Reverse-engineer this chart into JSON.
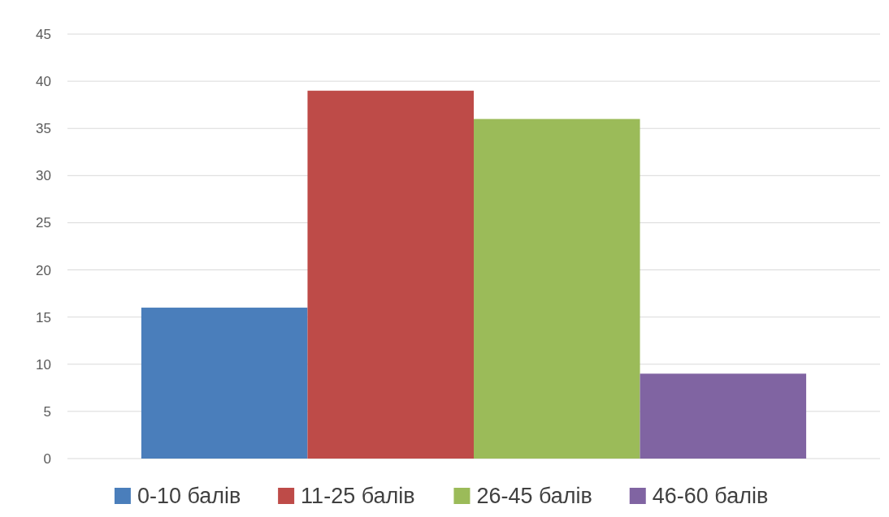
{
  "chart_data": {
    "type": "bar",
    "categories": [
      null
    ],
    "series": [
      {
        "name": "0-10 балів",
        "color": "#4a7ebb",
        "values": [
          16
        ]
      },
      {
        "name": "11-25 балів",
        "color": "#be4b48",
        "values": [
          39
        ]
      },
      {
        "name": "26-45 балів",
        "color": "#9bbb59",
        "values": [
          36
        ]
      },
      {
        "name": "46-60 балів",
        "color": "#8064a2",
        "values": [
          9
        ]
      }
    ],
    "ylim": [
      0,
      45
    ],
    "yticks": [
      0,
      5,
      10,
      15,
      20,
      25,
      30,
      35,
      40,
      45
    ],
    "grid": "y",
    "legend": "bottom"
  }
}
